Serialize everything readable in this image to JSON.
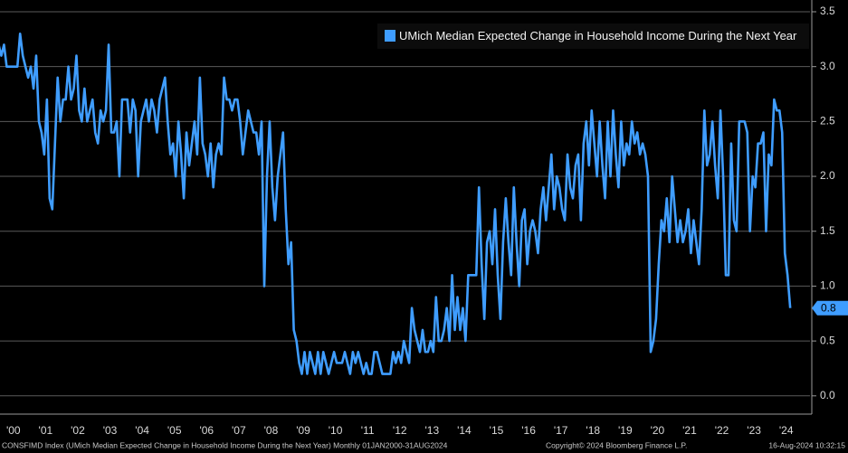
{
  "chart_data": {
    "type": "line",
    "categories": [
      null,
      null,
      null,
      null,
      null,
      null,
      "'00",
      null,
      null,
      null,
      null,
      null,
      null,
      null,
      null,
      null,
      null,
      null,
      "'01",
      null,
      null,
      null,
      null,
      null,
      null,
      null,
      null,
      null,
      null,
      null,
      "'02",
      null,
      null,
      null,
      null,
      null,
      null,
      null,
      null,
      null,
      null,
      null,
      "'03",
      null,
      null,
      null,
      null,
      null,
      null,
      null,
      null,
      null,
      null,
      null,
      "'04",
      null,
      null,
      null,
      null,
      null,
      null,
      null,
      null,
      null,
      null,
      null,
      "'05",
      null,
      null,
      null,
      null,
      null,
      null,
      null,
      null,
      null,
      null,
      null,
      "'06",
      null,
      null,
      null,
      null,
      null,
      null,
      null,
      null,
      null,
      null,
      null,
      "'07",
      null,
      null,
      null,
      null,
      null,
      null,
      null,
      null,
      null,
      null,
      null,
      "'08",
      null,
      null,
      null,
      null,
      null,
      null,
      null,
      null,
      null,
      null,
      null,
      "'09",
      null,
      null,
      null,
      null,
      null,
      null,
      null,
      null,
      null,
      null,
      null,
      "'10",
      null,
      null,
      null,
      null,
      null,
      null,
      null,
      null,
      null,
      null,
      null,
      "'11",
      null,
      null,
      null,
      null,
      null,
      null,
      null,
      null,
      null,
      null,
      null,
      "'12",
      null,
      null,
      null,
      null,
      null,
      null,
      null,
      null,
      null,
      null,
      null,
      "'13",
      null,
      null,
      null,
      null,
      null,
      null,
      null,
      null,
      null,
      null,
      null,
      "'14",
      null,
      null,
      null,
      null,
      null,
      null,
      null,
      null,
      null,
      null,
      null,
      "'15",
      null,
      null,
      null,
      null,
      null,
      null,
      null,
      null,
      null,
      null,
      null,
      "'16",
      null,
      null,
      null,
      null,
      null,
      null,
      null,
      null,
      null,
      null,
      null,
      "'17",
      null,
      null,
      null,
      null,
      null,
      null,
      null,
      null,
      null,
      null,
      null,
      "'18",
      null,
      null,
      null,
      null,
      null,
      null,
      null,
      null,
      null,
      null,
      null,
      "'19",
      null,
      null,
      null,
      null,
      null,
      null,
      null,
      null,
      null,
      null,
      null,
      "'20",
      null,
      null,
      null,
      null,
      null,
      null,
      null,
      null,
      null,
      null,
      null,
      "'21",
      null,
      null,
      null,
      null,
      null,
      null,
      null,
      null,
      null,
      null,
      null,
      "'22",
      null,
      null,
      null,
      null,
      null,
      null,
      null,
      null,
      null,
      null,
      null,
      "'23",
      null,
      null,
      null,
      null,
      null,
      null,
      null,
      null,
      null,
      null,
      null,
      "'24",
      null
    ],
    "series": [
      {
        "name": "UMich Median Expected Change in Household Income During the Next Year",
        "color": "#3f9dff",
        "values": [
          3.2,
          3.1,
          3.2,
          3.0,
          3.0,
          3.0,
          3.0,
          3.0,
          3.3,
          3.1,
          3.0,
          2.9,
          3.0,
          2.8,
          3.1,
          2.5,
          2.4,
          2.2,
          2.7,
          1.8,
          1.7,
          2.3,
          2.9,
          2.5,
          2.7,
          2.7,
          3.0,
          2.7,
          2.8,
          3.1,
          2.6,
          2.5,
          2.8,
          2.5,
          2.6,
          2.7,
          2.4,
          2.3,
          2.6,
          2.5,
          2.6,
          3.2,
          2.4,
          2.4,
          2.5,
          2.0,
          2.7,
          2.7,
          2.7,
          2.4,
          2.7,
          2.6,
          2.0,
          2.5,
          2.6,
          2.7,
          2.5,
          2.7,
          2.6,
          2.4,
          2.7,
          2.8,
          2.9,
          2.5,
          2.2,
          2.3,
          2.0,
          2.5,
          2.2,
          1.8,
          2.4,
          2.1,
          2.3,
          2.5,
          2.2,
          2.9,
          2.3,
          2.2,
          2.0,
          2.3,
          1.9,
          2.2,
          2.3,
          2.2,
          2.9,
          2.7,
          2.7,
          2.6,
          2.7,
          2.7,
          2.5,
          2.2,
          2.4,
          2.6,
          2.5,
          2.4,
          2.4,
          2.2,
          2.5,
          1.0,
          2.0,
          2.5,
          1.9,
          1.6,
          2.0,
          2.2,
          2.4,
          1.7,
          1.2,
          1.4,
          0.6,
          0.5,
          0.3,
          0.2,
          0.4,
          0.2,
          0.4,
          0.3,
          0.2,
          0.4,
          0.2,
          0.4,
          0.3,
          0.2,
          0.3,
          0.4,
          0.3,
          0.3,
          0.3,
          0.4,
          0.3,
          0.2,
          0.4,
          0.3,
          0.4,
          0.3,
          0.2,
          0.3,
          0.2,
          0.2,
          0.4,
          0.4,
          0.3,
          0.2,
          0.2,
          0.2,
          0.2,
          0.4,
          0.3,
          0.4,
          0.3,
          0.5,
          0.4,
          0.3,
          0.8,
          0.6,
          0.5,
          0.4,
          0.6,
          0.4,
          0.4,
          0.5,
          0.4,
          0.9,
          0.5,
          0.5,
          0.6,
          0.8,
          0.5,
          1.1,
          0.6,
          0.9,
          0.6,
          0.8,
          0.5,
          1.1,
          1.1,
          1.1,
          1.1,
          1.9,
          1.2,
          0.7,
          1.4,
          1.5,
          1.2,
          1.7,
          1.1,
          0.7,
          1.4,
          1.8,
          1.4,
          1.1,
          1.9,
          1.4,
          1.0,
          1.6,
          1.7,
          1.2,
          1.5,
          1.6,
          1.5,
          1.3,
          1.7,
          1.9,
          1.6,
          1.9,
          2.2,
          1.7,
          2.0,
          1.9,
          1.7,
          1.6,
          2.2,
          1.9,
          1.8,
          2.1,
          2.2,
          1.6,
          2.3,
          2.5,
          2.1,
          2.6,
          2.3,
          2.0,
          2.5,
          2.1,
          1.8,
          2.5,
          2.0,
          2.6,
          2.2,
          1.9,
          2.5,
          2.1,
          2.3,
          2.2,
          2.5,
          2.3,
          2.4,
          2.2,
          2.3,
          2.2,
          2.0,
          0.4,
          0.5,
          0.7,
          1.2,
          1.6,
          1.5,
          1.8,
          1.4,
          2.0,
          1.7,
          1.4,
          1.6,
          1.4,
          1.5,
          1.7,
          1.3,
          1.6,
          1.4,
          1.2,
          1.7,
          2.6,
          2.1,
          2.2,
          2.5,
          2.1,
          1.8,
          2.6,
          2.0,
          1.1,
          1.1,
          2.3,
          1.6,
          1.5,
          2.5,
          2.5,
          2.5,
          2.4,
          1.5,
          2.0,
          1.9,
          2.3,
          2.3,
          2.4,
          1.5,
          2.2,
          2.1,
          2.7,
          2.6,
          2.6,
          2.4,
          1.3,
          1.1,
          0.8
        ]
      }
    ],
    "ylim": [
      -0.15,
      3.5
    ],
    "yticks": [
      {
        "value": 0,
        "label": "0.0"
      },
      0.5,
      {
        "value": 1,
        "label": "1.0"
      },
      1.5,
      {
        "value": 2,
        "label": "2.0"
      },
      2.5,
      {
        "value": 3,
        "label": "3.0"
      },
      3.5
    ],
    "grid": true,
    "legend": "top-right",
    "source_note": "CONSFIMD Index (UMich Median Expected Change in Household Income During the Next Year)  Monthly 01JAN2000-31AUG2024",
    "copyright": "Copyright© 2024 Bloomberg Finance L.P.",
    "timestamp": "16-Aug-2024 10:32:15"
  }
}
